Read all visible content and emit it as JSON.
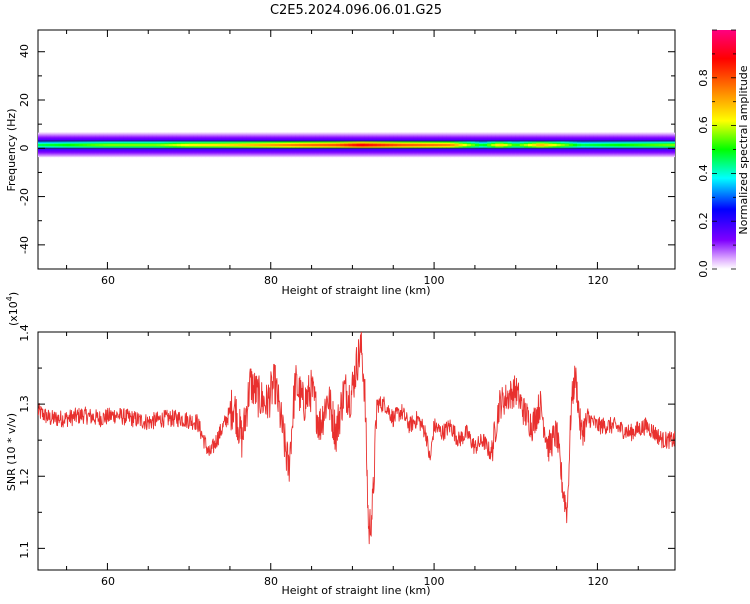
{
  "title": "C2E5.2024.096.06.01.G25",
  "chart_data": [
    {
      "type": "heatmap",
      "xlabel": "Height of straight line (km)",
      "ylabel": "Frequency (Hz)",
      "xlim": [
        51.5,
        129.5
      ],
      "ylim": [
        -50,
        49
      ],
      "x_ticks": [
        "60",
        "80",
        "100",
        "120"
      ],
      "y_ticks": [
        "-40",
        "-20",
        "0",
        "20",
        "40"
      ],
      "colorbar": {
        "label": "Normalized spectral amplitude",
        "range": [
          0,
          1
        ],
        "ticks": [
          "0.0",
          "0.2",
          "0.4",
          "0.6",
          "0.8"
        ],
        "colors": [
          "#ffffff",
          "#e0b0ff",
          "#8000ff",
          "#0000ff",
          "#00ffff",
          "#00ff00",
          "#ffff00",
          "#ff8000",
          "#ff0000",
          "#ff0080"
        ]
      },
      "band": {
        "center_hz": 1.5,
        "core_halfwidth_hz": 1.5,
        "halo_halfwidth_hz": 5,
        "peak_amplitude": [
          [
            51.5,
            0.5
          ],
          [
            56,
            0.55
          ],
          [
            60,
            0.6
          ],
          [
            66,
            0.6
          ],
          [
            70,
            0.68
          ],
          [
            74,
            0.7
          ],
          [
            78,
            0.75
          ],
          [
            84,
            0.82
          ],
          [
            88,
            0.85
          ],
          [
            91,
            0.95
          ],
          [
            96,
            0.85
          ],
          [
            102,
            0.8
          ],
          [
            104,
            0.65
          ],
          [
            106,
            0.5
          ],
          [
            108,
            0.72
          ],
          [
            110,
            0.55
          ],
          [
            113,
            0.75
          ],
          [
            116,
            0.6
          ],
          [
            118,
            0.5
          ],
          [
            124,
            0.55
          ],
          [
            129.5,
            0.6
          ]
        ]
      }
    },
    {
      "type": "line",
      "xlabel": "Height of straight line (km)",
      "ylabel": "SNR (10 * v/v)",
      "y_scale_label": "(x10",
      "y_scale_exp": "4",
      "y_scale_close": ")",
      "xlim": [
        51.5,
        129.5
      ],
      "ylim": [
        1.07,
        1.4
      ],
      "x_ticks": [
        "60",
        "80",
        "100",
        "120"
      ],
      "y_ticks": [
        "1.1",
        "1.2",
        "1.3",
        "1.4"
      ],
      "line_color": "#e8302e",
      "series": [
        {
          "values_x": [
            51.5,
            53,
            55,
            57,
            59,
            61,
            63,
            65,
            67,
            69,
            71,
            72.5,
            74,
            75.5,
            76.5,
            77.5,
            78.5,
            79.5,
            80.5,
            81.5,
            82.2,
            83,
            84,
            85,
            86,
            87,
            88,
            89,
            89.8,
            90.6,
            91.1,
            91.5,
            92,
            92.5,
            93,
            94,
            95,
            96,
            97,
            98,
            99,
            99.5,
            100,
            101,
            102,
            103,
            104,
            105,
            106,
            107,
            108,
            109,
            110,
            111,
            112,
            113,
            114,
            115,
            115.8,
            116.3,
            116.8,
            117.3,
            118,
            119,
            120,
            122,
            124,
            126,
            128,
            129.5
          ],
          "values_y": [
            1.29,
            1.28,
            1.28,
            1.285,
            1.28,
            1.285,
            1.28,
            1.275,
            1.28,
            1.28,
            1.275,
            1.23,
            1.265,
            1.3,
            1.25,
            1.33,
            1.31,
            1.3,
            1.33,
            1.26,
            1.21,
            1.33,
            1.3,
            1.32,
            1.27,
            1.31,
            1.26,
            1.32,
            1.31,
            1.36,
            1.38,
            1.32,
            1.12,
            1.16,
            1.3,
            1.3,
            1.28,
            1.29,
            1.27,
            1.28,
            1.26,
            1.22,
            1.27,
            1.26,
            1.27,
            1.25,
            1.26,
            1.24,
            1.25,
            1.23,
            1.3,
            1.31,
            1.32,
            1.29,
            1.27,
            1.3,
            1.24,
            1.26,
            1.18,
            1.15,
            1.3,
            1.34,
            1.26,
            1.28,
            1.27,
            1.27,
            1.26,
            1.27,
            1.25,
            1.25
          ]
        }
      ]
    }
  ]
}
